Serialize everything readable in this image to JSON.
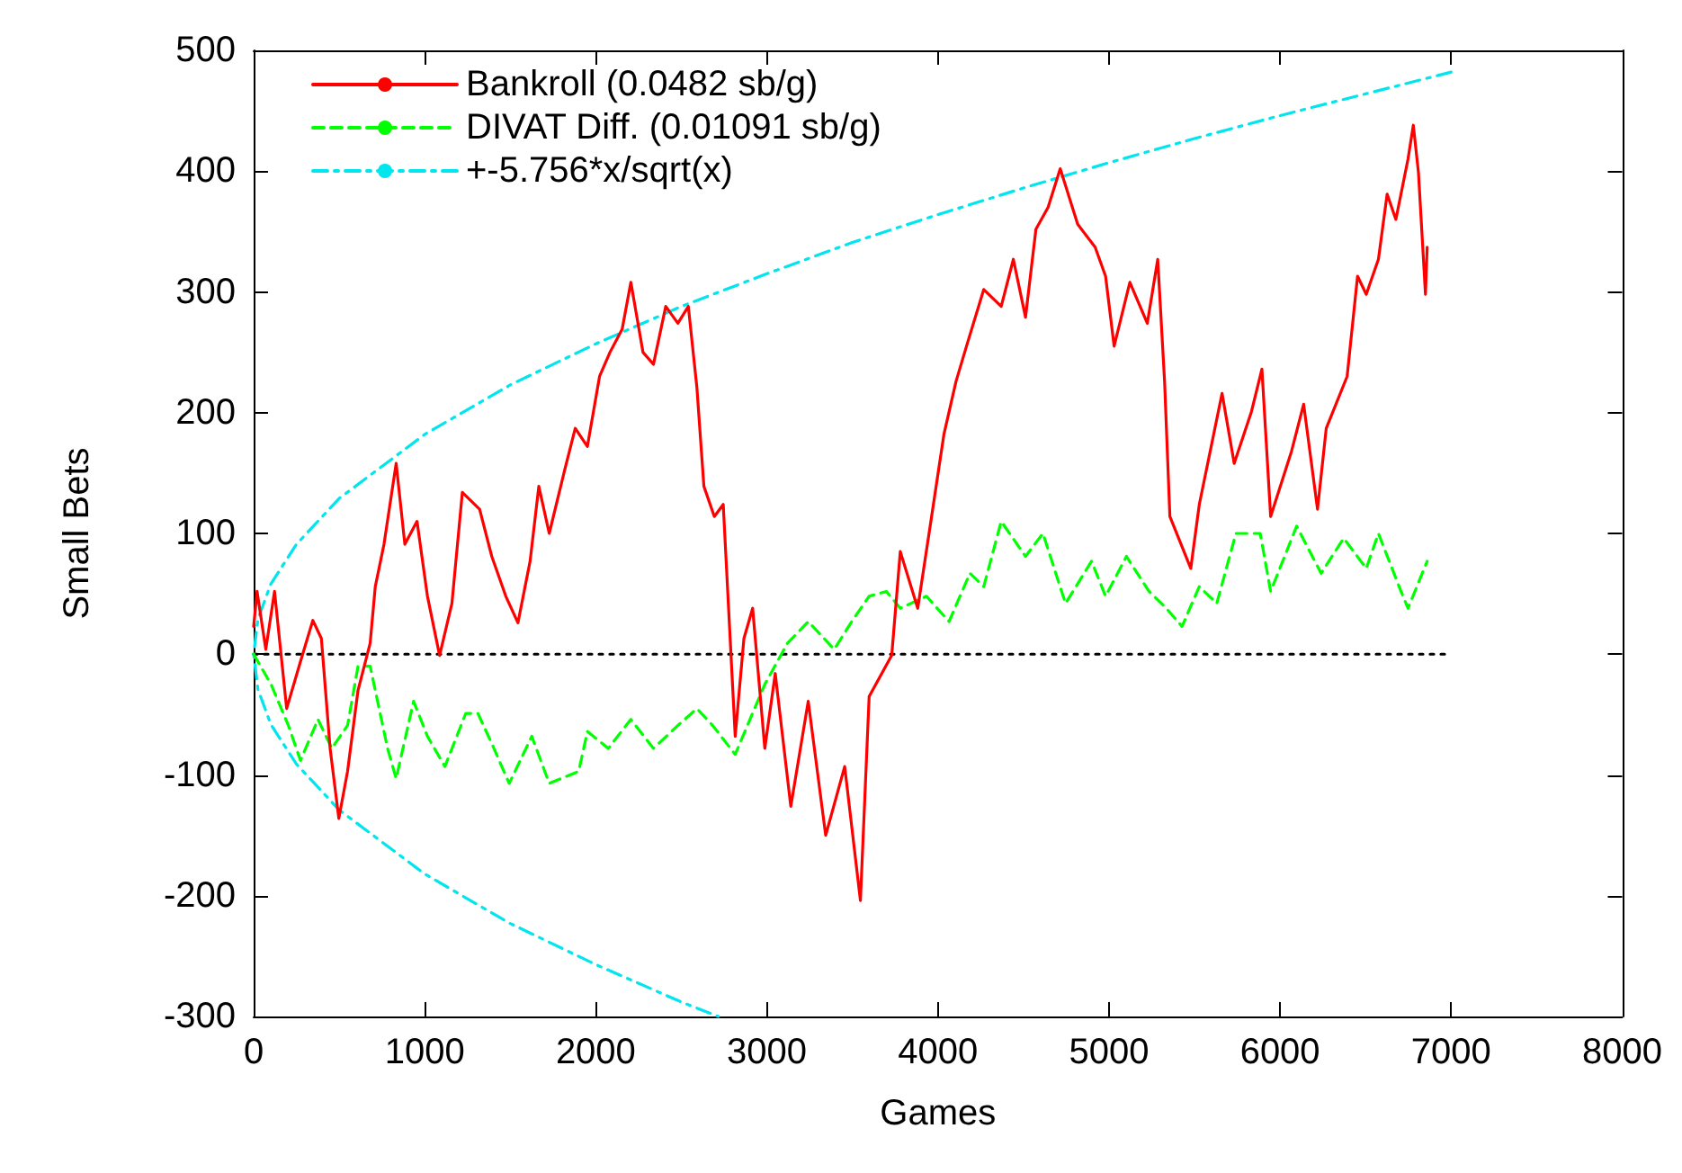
{
  "chart_data": {
    "type": "line",
    "xlabel": "Games",
    "ylabel": "Small Bets",
    "xlim": [
      0,
      8000
    ],
    "xticks": [
      0,
      1000,
      2000,
      3000,
      4000,
      5000,
      6000,
      7000,
      8000
    ],
    "ylim": [
      -300,
      500
    ],
    "yticks": [
      -300,
      -200,
      -100,
      0,
      100,
      200,
      300,
      400,
      500
    ],
    "grid": false,
    "legend": "top left",
    "marker": "none",
    "series": [
      {
        "name": "Bankroll (0.0482 sb/g)",
        "color": "#ff0000",
        "line_style": "solid",
        "x": [
          0,
          20,
          71,
          122,
          193,
          274,
          346,
          396,
          447,
          498,
          549,
          610,
          681,
          711,
          762,
          833,
          884,
          955,
          1016,
          1087,
          1159,
          1220,
          1321,
          1392,
          1474,
          1545,
          1616,
          1667,
          1728,
          1819,
          1880,
          1951,
          2022,
          2083,
          2154,
          2205,
          2276,
          2337,
          2409,
          2480,
          2541,
          2591,
          2632,
          2693,
          2745,
          2815,
          2866,
          2917,
          2988,
          3049,
          3140,
          3242,
          3344,
          3455,
          3547,
          3598,
          3730,
          3780,
          3882,
          3963,
          4035,
          4106,
          4167,
          4268,
          4370,
          4441,
          4512,
          4573,
          4644,
          4715,
          4817,
          4919,
          4980,
          5030,
          5122,
          5224,
          5285,
          5325,
          5356,
          5478,
          5528,
          5661,
          5732,
          5833,
          5894,
          5945,
          6067,
          6138,
          6219,
          6270,
          6392,
          6453,
          6504,
          6575,
          6626,
          6677,
          6748,
          6779,
          6809,
          6850,
          6860
        ],
        "values": [
          23,
          52,
          4,
          52,
          -45,
          -6,
          28,
          13,
          -78,
          -136,
          -97,
          -30,
          9,
          56,
          91,
          158,
          91,
          110,
          48,
          -1,
          42,
          134,
          120,
          81,
          48,
          26,
          77,
          139,
          100,
          153,
          187,
          172,
          230,
          250,
          269,
          308,
          250,
          240,
          288,
          274,
          288,
          221,
          139,
          114,
          124,
          -68,
          13,
          38,
          -78,
          -16,
          -126,
          -39,
          -150,
          -93,
          -204,
          -35,
          -1,
          85,
          38,
          114,
          182,
          226,
          255,
          302,
          288,
          327,
          279,
          352,
          370,
          402,
          356,
          337,
          313,
          255,
          308,
          274,
          327,
          226,
          114,
          71,
          124,
          216,
          158,
          201,
          236,
          114,
          168,
          207,
          120,
          187,
          230,
          313,
          298,
          327,
          381,
          360,
          410,
          438,
          399,
          298,
          337
        ]
      },
      {
        "name": "DIVAT Diff. (0.01091 sb/g)",
        "color": "#00ff00",
        "line_style": "dashed",
        "x": [
          0,
          102,
          203,
          274,
          376,
          457,
          549,
          610,
          681,
          783,
          833,
          935,
          1016,
          1118,
          1240,
          1311,
          1392,
          1494,
          1626,
          1728,
          1900,
          1951,
          2073,
          2205,
          2337,
          2480,
          2591,
          2683,
          2815,
          2988,
          3120,
          3242,
          3394,
          3496,
          3598,
          3699,
          3780,
          3933,
          4065,
          4187,
          4268,
          4370,
          4512,
          4614,
          4746,
          4898,
          4980,
          5102,
          5234,
          5335,
          5427,
          5528,
          5630,
          5742,
          5884,
          5945,
          6097,
          6240,
          6372,
          6504,
          6575,
          6707,
          6748,
          6860
        ],
        "values": [
          0,
          -25,
          -59,
          -88,
          -54,
          -78,
          -59,
          -10,
          -10,
          -78,
          -103,
          -39,
          -68,
          -93,
          -49,
          -49,
          -74,
          -107,
          -68,
          -107,
          -97,
          -64,
          -78,
          -54,
          -78,
          -59,
          -45,
          -59,
          -83,
          -25,
          9,
          27,
          4,
          27,
          48,
          52,
          38,
          48,
          27,
          67,
          56,
          110,
          81,
          100,
          42,
          77,
          48,
          81,
          52,
          38,
          23,
          56,
          42,
          100,
          100,
          52,
          106,
          67,
          96,
          71,
          100,
          52,
          38,
          77
        ]
      },
      {
        "name": "+-5.756*x/sqrt(x)",
        "color": "#00e5ee",
        "line_style": "dashdot",
        "x": [
          7000,
          6500,
          6000,
          5500,
          5000,
          4500,
          4000,
          3500,
          3000,
          2500,
          2000,
          1500,
          1000,
          500,
          250,
          100,
          25,
          0,
          25,
          100,
          250,
          500,
          1000,
          1500,
          2000,
          2500,
          2717
        ],
        "values": [
          482,
          464,
          446,
          427,
          407,
          386,
          364,
          341,
          315,
          288,
          257,
          223,
          182,
          129,
          91,
          58,
          29,
          0,
          -29,
          -58,
          -91,
          -129,
          -182,
          -223,
          -257,
          -288,
          -300
        ]
      },
      {
        "color": "#000000",
        "line_style": "dotted",
        "x": [
          0,
          7000
        ],
        "values": [
          0,
          0
        ]
      }
    ]
  }
}
